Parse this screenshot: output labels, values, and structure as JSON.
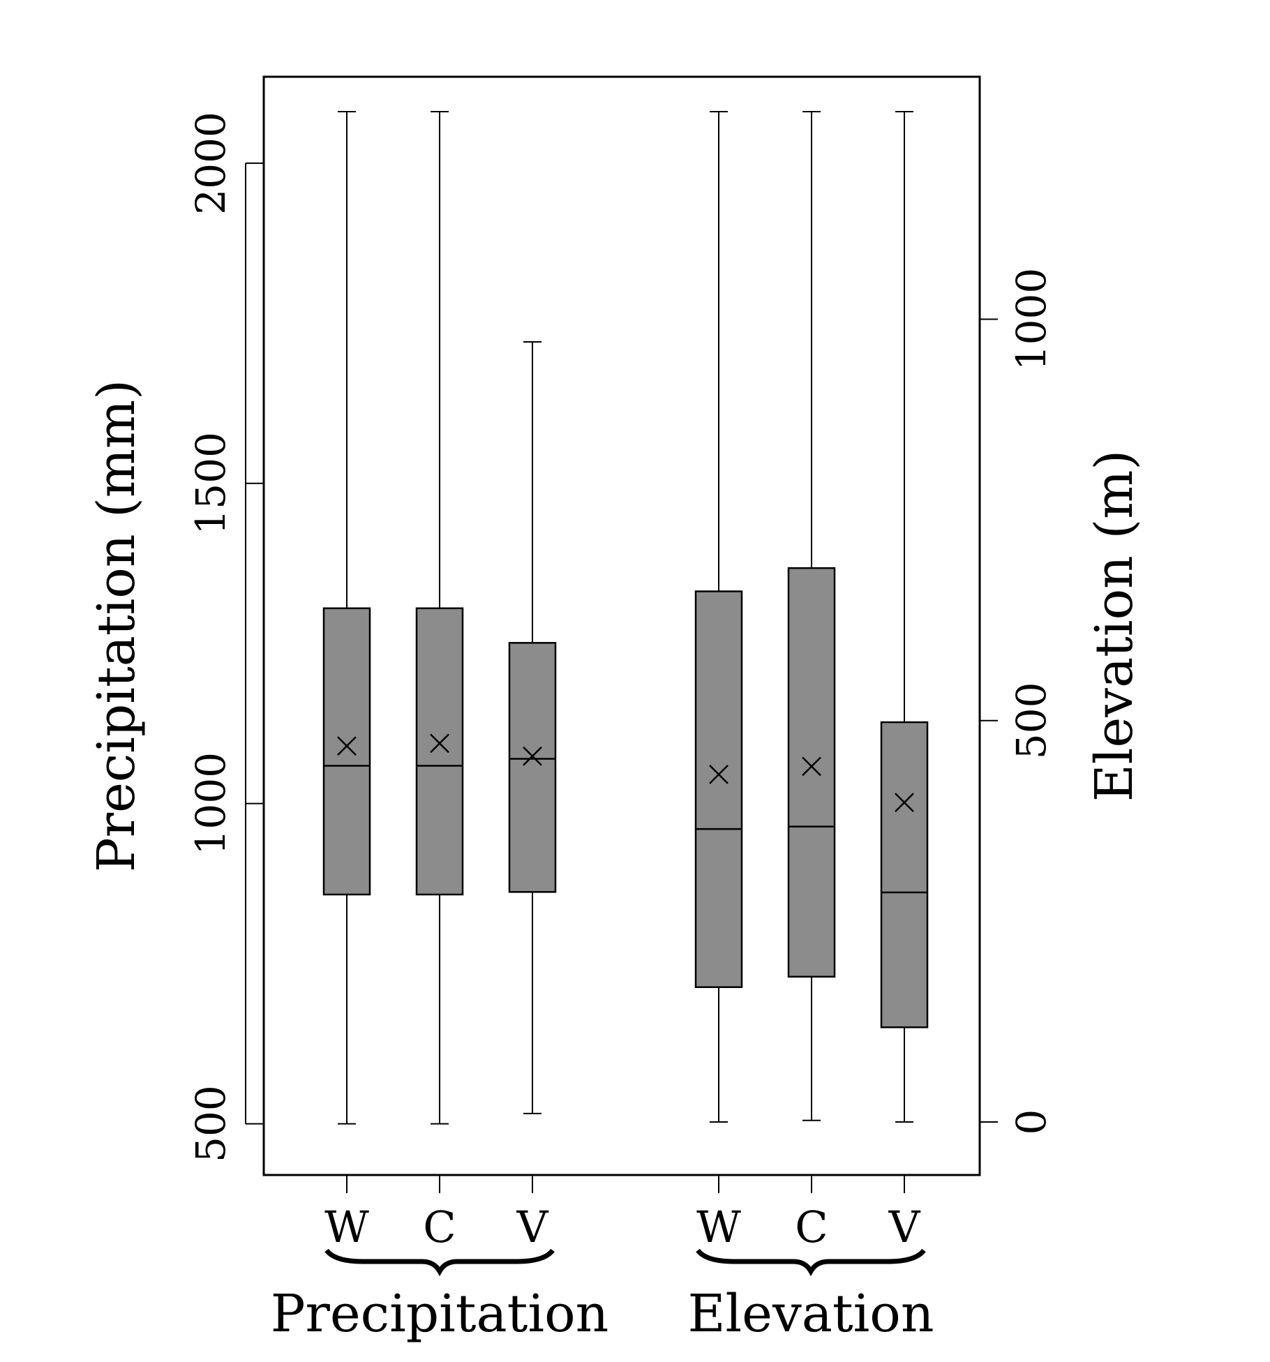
{
  "chart_data": {
    "type": "boxplot",
    "left_axis": {
      "label": "Precipitation (mm)",
      "range": [
        420,
        2135
      ],
      "ticks": [
        500,
        1000,
        1500,
        2000
      ],
      "tick_labels": [
        "500",
        "1000",
        "1500",
        "2000"
      ]
    },
    "right_axis": {
      "label": "Elevation (m)",
      "range": [
        -66,
        1302
      ],
      "ticks": [
        0,
        500,
        1000
      ],
      "tick_labels": [
        "0",
        "500",
        "1000"
      ]
    },
    "groups": [
      {
        "name": "Precipitation",
        "axis": "left",
        "categories": [
          "W",
          "C",
          "V"
        ]
      },
      {
        "name": "Elevation",
        "axis": "right",
        "categories": [
          "W",
          "C",
          "V"
        ]
      }
    ],
    "boxes": [
      {
        "group": "Precipitation",
        "category": "W",
        "min": 500,
        "q1": 858,
        "median": 1059,
        "q3": 1305,
        "max": 2083,
        "mean": 1090
      },
      {
        "group": "Precipitation",
        "category": "C",
        "min": 500,
        "q1": 858,
        "median": 1059,
        "q3": 1305,
        "max": 2083,
        "mean": 1094
      },
      {
        "group": "Precipitation",
        "category": "V",
        "min": 516,
        "q1": 862,
        "median": 1070,
        "q3": 1251,
        "max": 1721,
        "mean": 1074
      },
      {
        "group": "Elevation",
        "category": "W",
        "min": 0,
        "q1": 168,
        "median": 365,
        "q3": 661,
        "max": 1352,
        "mean": 433
      },
      {
        "group": "Elevation",
        "category": "C",
        "min": 2,
        "q1": 181,
        "median": 368,
        "q3": 690,
        "max": 1308,
        "mean": 443
      },
      {
        "group": "Elevation",
        "category": "V",
        "min": 0,
        "q1": 118,
        "median": 286,
        "q3": 498,
        "max": 1352,
        "mean": 398
      }
    ],
    "box_color": "#8c8c8c",
    "grid": false,
    "legend": "none"
  }
}
